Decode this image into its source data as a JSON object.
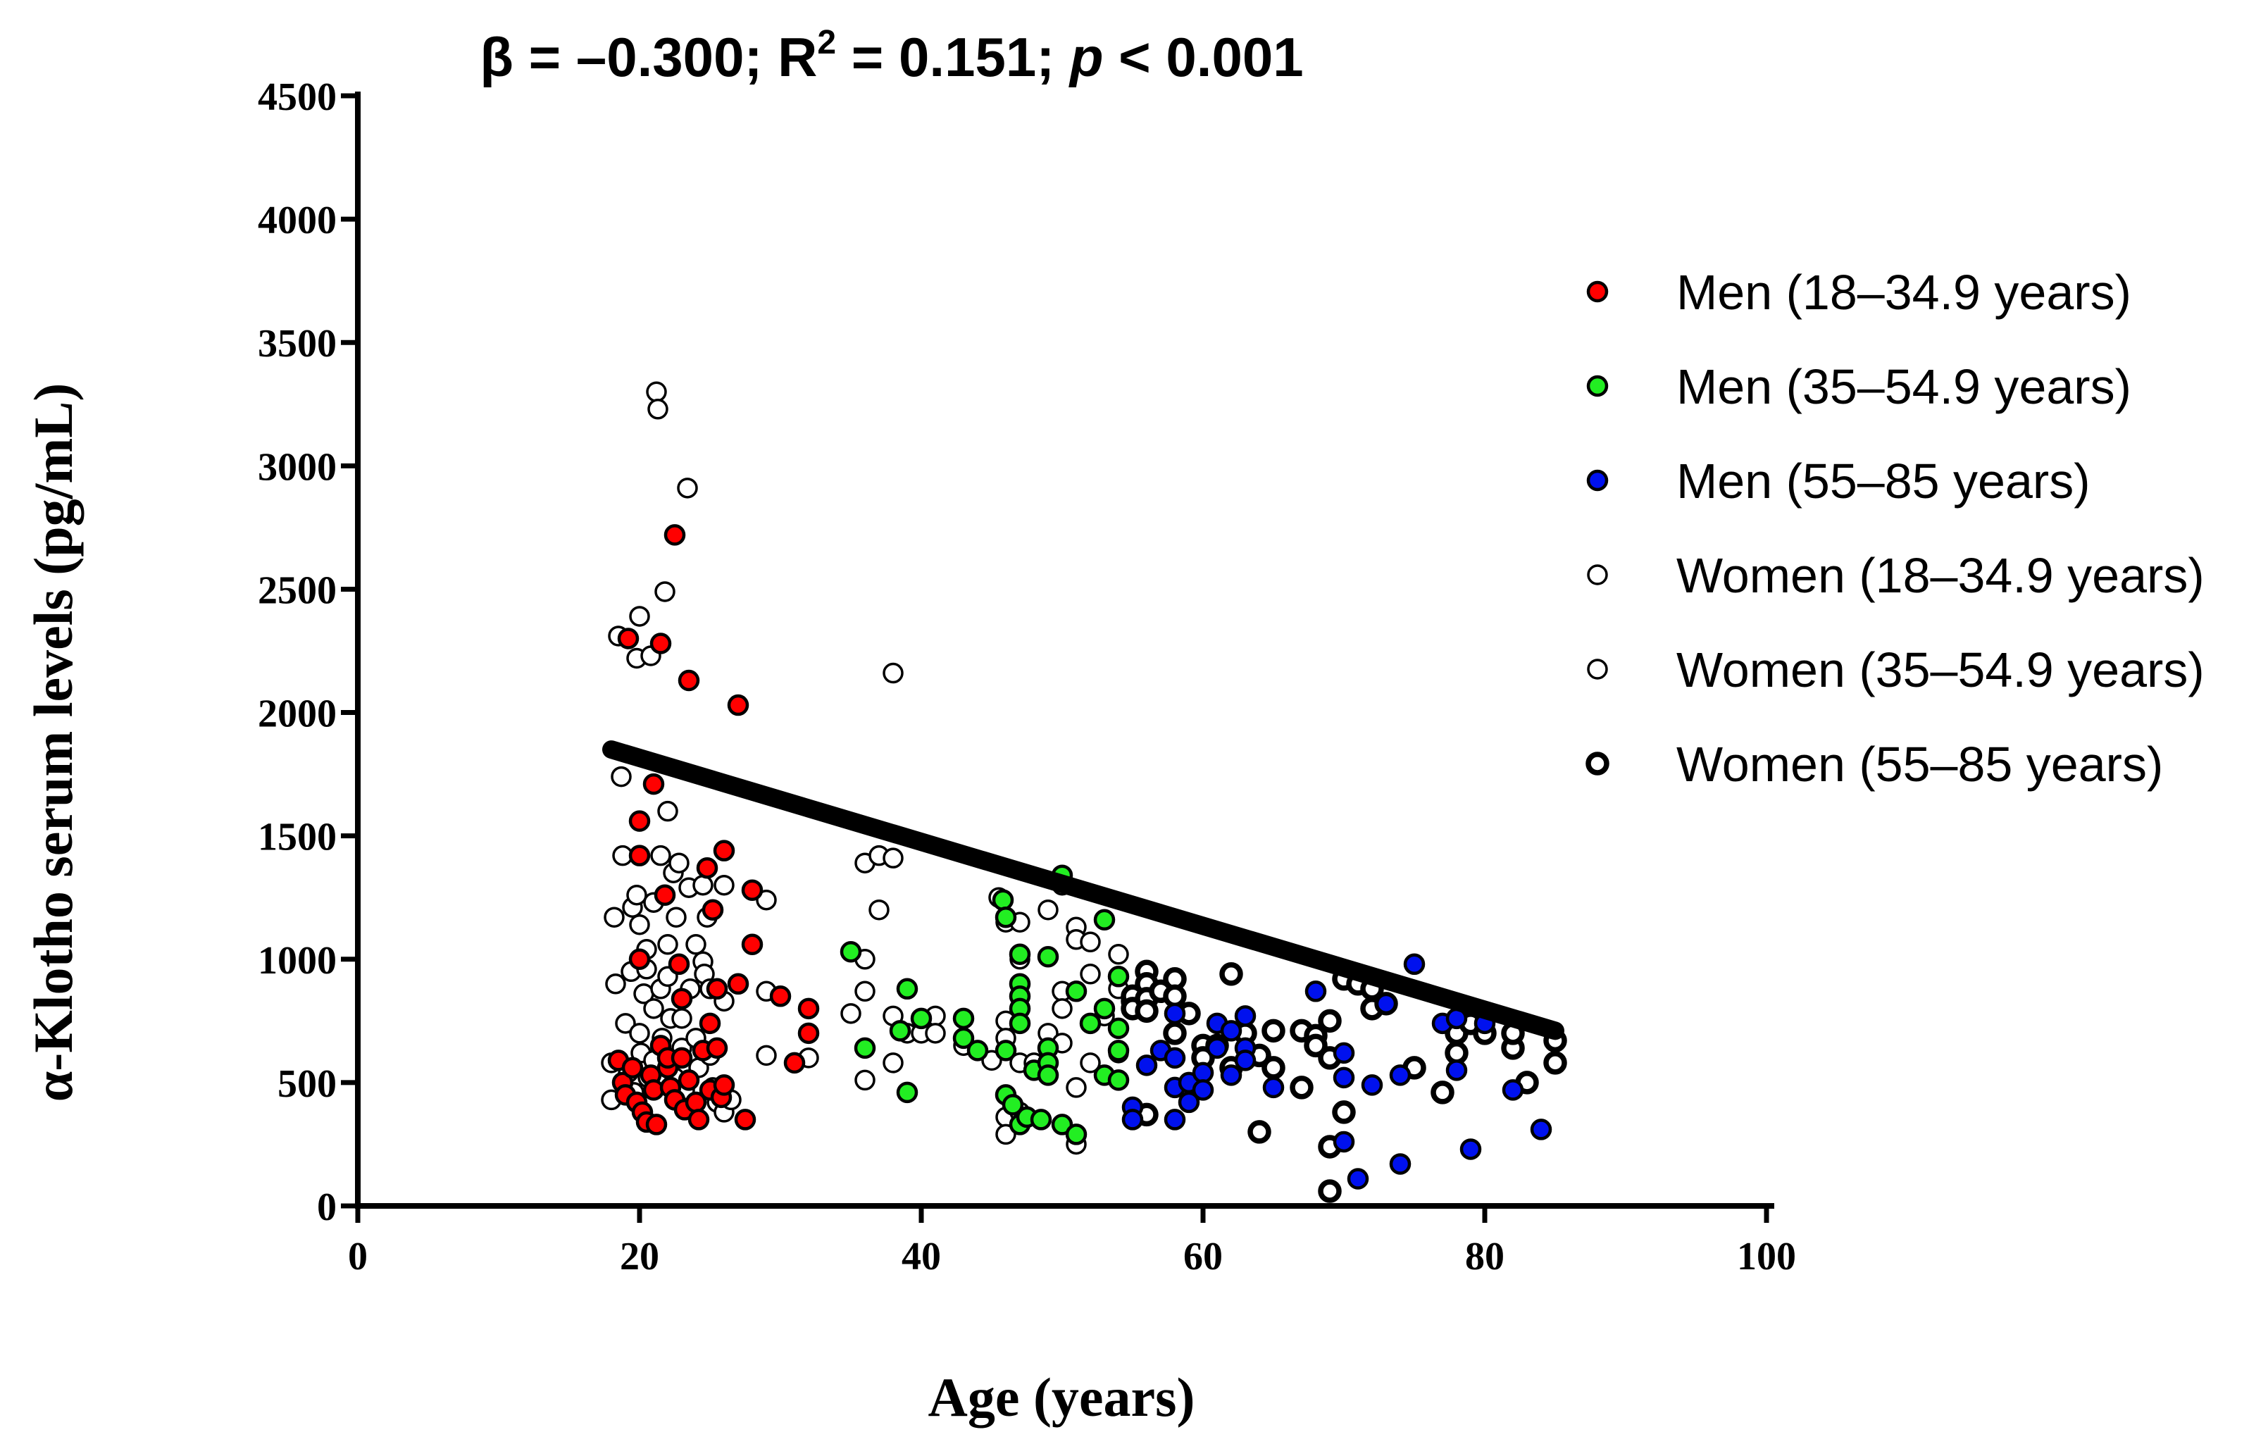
{
  "chart_data": {
    "type": "scatter",
    "title": {
      "beta_part": "β = –0.300; R",
      "r_sup": "2",
      "r2_part": " = 0.151; ",
      "p_symbol": "p",
      "p_part": " < 0.001"
    },
    "xlabel": "Age (years)",
    "ylabel": "α-Klotho serum levels (pg/mL)",
    "xlim": [
      0,
      100
    ],
    "ylim": [
      0,
      4500
    ],
    "xticks": [
      "0",
      "20",
      "40",
      "60",
      "80",
      "100"
    ],
    "yticks": [
      "0",
      "500",
      "1000",
      "1500",
      "2000",
      "2500",
      "3000",
      "3500",
      "4000",
      "4500"
    ],
    "grid": false,
    "legend_position": "right",
    "regression_line": {
      "x": [
        18,
        85
      ],
      "y": [
        1850,
        710
      ]
    },
    "series": [
      {
        "name": "Men (18–34.9 years)",
        "color": "#ff0000",
        "marker": "filled",
        "points": [
          [
            18.5,
            590
          ],
          [
            18.8,
            500
          ],
          [
            19,
            450
          ],
          [
            19.2,
            2300
          ],
          [
            19.5,
            560
          ],
          [
            19.8,
            420
          ],
          [
            20,
            1560
          ],
          [
            20,
            1420
          ],
          [
            20,
            1000
          ],
          [
            20.2,
            380
          ],
          [
            20.5,
            340
          ],
          [
            20.8,
            530
          ],
          [
            21,
            1710
          ],
          [
            21,
            470
          ],
          [
            21.2,
            330
          ],
          [
            21.5,
            2280
          ],
          [
            21.5,
            650
          ],
          [
            21.8,
            1260
          ],
          [
            22,
            560
          ],
          [
            22,
            600
          ],
          [
            22.2,
            480
          ],
          [
            22.5,
            2720
          ],
          [
            22.5,
            430
          ],
          [
            22.8,
            980
          ],
          [
            23,
            840
          ],
          [
            23,
            600
          ],
          [
            23.2,
            390
          ],
          [
            23.5,
            2130
          ],
          [
            23.5,
            510
          ],
          [
            24,
            420
          ],
          [
            24.2,
            350
          ],
          [
            24.5,
            630
          ],
          [
            24.8,
            1370
          ],
          [
            25,
            740
          ],
          [
            25,
            470
          ],
          [
            25.2,
            1200
          ],
          [
            25.5,
            880
          ],
          [
            25.5,
            640
          ],
          [
            25.8,
            440
          ],
          [
            26,
            1440
          ],
          [
            26,
            490
          ],
          [
            27,
            2030
          ],
          [
            27,
            900
          ],
          [
            27.5,
            350
          ],
          [
            28,
            1060
          ],
          [
            28,
            1280
          ],
          [
            30,
            850
          ],
          [
            31,
            580
          ],
          [
            32,
            800
          ],
          [
            32,
            700
          ]
        ]
      },
      {
        "name": "Men (35–54.9 years)",
        "color": "#22ee22",
        "marker": "filled",
        "points": [
          [
            35,
            1030
          ],
          [
            36,
            640
          ],
          [
            38.5,
            710
          ],
          [
            39,
            880
          ],
          [
            39,
            460
          ],
          [
            40,
            760
          ],
          [
            43,
            760
          ],
          [
            43,
            680
          ],
          [
            44,
            630
          ],
          [
            45.8,
            1240
          ],
          [
            46,
            1170
          ],
          [
            46,
            630
          ],
          [
            46,
            450
          ],
          [
            46.5,
            410
          ],
          [
            47,
            1020
          ],
          [
            47,
            900
          ],
          [
            47,
            850
          ],
          [
            47,
            800
          ],
          [
            47,
            740
          ],
          [
            47,
            330
          ],
          [
            47.5,
            360
          ],
          [
            48,
            550
          ],
          [
            48.5,
            350
          ],
          [
            49,
            1010
          ],
          [
            49,
            640
          ],
          [
            49,
            580
          ],
          [
            49,
            530
          ],
          [
            50,
            1340
          ],
          [
            50,
            330
          ],
          [
            51,
            870
          ],
          [
            51,
            290
          ],
          [
            52,
            740
          ],
          [
            53,
            1160
          ],
          [
            53,
            800
          ],
          [
            53,
            530
          ],
          [
            54,
            930
          ],
          [
            54,
            720
          ],
          [
            54,
            630
          ],
          [
            54,
            510
          ]
        ]
      },
      {
        "name": "Men (55–85 years)",
        "color": "#0011ee",
        "marker": "filled",
        "points": [
          [
            55,
            400
          ],
          [
            55,
            350
          ],
          [
            56,
            570
          ],
          [
            57,
            630
          ],
          [
            58,
            780
          ],
          [
            58,
            600
          ],
          [
            58,
            480
          ],
          [
            58,
            350
          ],
          [
            59,
            420
          ],
          [
            59,
            500
          ],
          [
            60,
            540
          ],
          [
            60,
            470
          ],
          [
            61,
            740
          ],
          [
            61,
            640
          ],
          [
            62,
            710
          ],
          [
            62,
            530
          ],
          [
            63,
            770
          ],
          [
            63,
            640
          ],
          [
            63,
            590
          ],
          [
            65,
            480
          ],
          [
            68,
            870
          ],
          [
            70,
            620
          ],
          [
            70,
            520
          ],
          [
            70,
            260
          ],
          [
            71,
            110
          ],
          [
            72,
            490
          ],
          [
            73,
            820
          ],
          [
            74,
            170
          ],
          [
            74,
            530
          ],
          [
            75,
            980
          ],
          [
            77,
            740
          ],
          [
            78,
            760
          ],
          [
            78,
            550
          ],
          [
            79,
            230
          ],
          [
            80,
            740
          ],
          [
            82,
            470
          ],
          [
            84,
            310
          ]
        ]
      },
      {
        "name": "Women (18–34.9 years)",
        "color": "#ffffff",
        "marker": "open",
        "points": [
          [
            18,
            580
          ],
          [
            18,
            430
          ],
          [
            18.2,
            1170
          ],
          [
            18.3,
            900
          ],
          [
            18.5,
            2310
          ],
          [
            18.7,
            1740
          ],
          [
            18.8,
            1420
          ],
          [
            19,
            740
          ],
          [
            19.2,
            540
          ],
          [
            19.4,
            950
          ],
          [
            19.5,
            1210
          ],
          [
            19.6,
            460
          ],
          [
            19.8,
            1260
          ],
          [
            19.8,
            2220
          ],
          [
            20,
            2390
          ],
          [
            20,
            1140
          ],
          [
            20,
            700
          ],
          [
            20.1,
            620
          ],
          [
            20.3,
            860
          ],
          [
            20.5,
            960
          ],
          [
            20.5,
            1040
          ],
          [
            20.6,
            520
          ],
          [
            20.8,
            2230
          ],
          [
            21,
            1230
          ],
          [
            21,
            800
          ],
          [
            21,
            590
          ],
          [
            21.2,
            3300
          ],
          [
            21.3,
            3230
          ],
          [
            21.5,
            880
          ],
          [
            21.5,
            1420
          ],
          [
            21.6,
            680
          ],
          [
            21.8,
            2490
          ],
          [
            22,
            1600
          ],
          [
            22,
            1060
          ],
          [
            22,
            930
          ],
          [
            22.2,
            760
          ],
          [
            22.4,
            1350
          ],
          [
            22.5,
            520
          ],
          [
            22.6,
            1170
          ],
          [
            22.8,
            1390
          ],
          [
            23,
            760
          ],
          [
            23,
            640
          ],
          [
            23.2,
            470
          ],
          [
            23.4,
            2910
          ],
          [
            23.5,
            1290
          ],
          [
            23.6,
            880
          ],
          [
            24,
            1060
          ],
          [
            24,
            680
          ],
          [
            24.2,
            560
          ],
          [
            24.5,
            1300
          ],
          [
            24.5,
            990
          ],
          [
            24.6,
            940
          ],
          [
            24.8,
            1170
          ],
          [
            25,
            880
          ],
          [
            25,
            610
          ],
          [
            25.2,
            480
          ],
          [
            25.5,
            420
          ],
          [
            26,
            1300
          ],
          [
            26,
            830
          ],
          [
            26,
            380
          ],
          [
            26.5,
            430
          ],
          [
            29,
            870
          ],
          [
            29,
            1240
          ],
          [
            29,
            610
          ],
          [
            32,
            600
          ]
        ]
      },
      {
        "name": "Women (35–54.9 years)",
        "color": "#ffffff",
        "marker": "open",
        "points": [
          [
            35,
            780
          ],
          [
            36,
            1000
          ],
          [
            36,
            870
          ],
          [
            36,
            1390
          ],
          [
            36,
            510
          ],
          [
            37,
            1420
          ],
          [
            37,
            1200
          ],
          [
            38,
            2160
          ],
          [
            38,
            1410
          ],
          [
            38,
            770
          ],
          [
            38,
            580
          ],
          [
            39,
            700
          ],
          [
            40,
            700
          ],
          [
            41,
            770
          ],
          [
            41,
            700
          ],
          [
            43,
            650
          ],
          [
            45,
            590
          ],
          [
            45.5,
            1250
          ],
          [
            46,
            1150
          ],
          [
            46,
            750
          ],
          [
            46,
            680
          ],
          [
            46,
            360
          ],
          [
            46,
            290
          ],
          [
            47,
            1150
          ],
          [
            47,
            1000
          ],
          [
            47,
            580
          ],
          [
            47,
            380
          ],
          [
            48,
            550
          ],
          [
            48,
            580
          ],
          [
            49,
            1200
          ],
          [
            49,
            700
          ],
          [
            50,
            1300
          ],
          [
            50,
            870
          ],
          [
            50,
            800
          ],
          [
            50,
            660
          ],
          [
            51,
            1130
          ],
          [
            51,
            1080
          ],
          [
            51,
            480
          ],
          [
            51,
            250
          ],
          [
            52,
            1070
          ],
          [
            52,
            940
          ],
          [
            52,
            580
          ],
          [
            53,
            770
          ],
          [
            54,
            1020
          ],
          [
            54,
            880
          ],
          [
            54,
            620
          ]
        ]
      },
      {
        "name": "Women (55–85 years)",
        "color": "#ffffff",
        "marker": "open-thick",
        "points": [
          [
            55,
            830
          ],
          [
            55,
            850
          ],
          [
            55,
            800
          ],
          [
            56,
            950
          ],
          [
            56,
            900
          ],
          [
            56,
            840
          ],
          [
            56,
            790
          ],
          [
            56,
            370
          ],
          [
            57,
            870
          ],
          [
            58,
            920
          ],
          [
            58,
            850
          ],
          [
            58,
            700
          ],
          [
            59,
            780
          ],
          [
            60,
            650
          ],
          [
            60,
            600
          ],
          [
            61,
            650
          ],
          [
            62,
            940
          ],
          [
            62,
            560
          ],
          [
            63,
            700
          ],
          [
            64,
            610
          ],
          [
            64,
            300
          ],
          [
            65,
            710
          ],
          [
            65,
            560
          ],
          [
            67,
            710
          ],
          [
            67,
            480
          ],
          [
            68,
            690
          ],
          [
            68,
            650
          ],
          [
            69,
            750
          ],
          [
            69,
            600
          ],
          [
            69,
            240
          ],
          [
            69,
            60
          ],
          [
            70,
            920
          ],
          [
            70,
            380
          ],
          [
            71,
            900
          ],
          [
            72,
            880
          ],
          [
            72,
            800
          ],
          [
            73,
            820
          ],
          [
            75,
            560
          ],
          [
            77,
            460
          ],
          [
            78,
            620
          ],
          [
            78,
            700
          ],
          [
            79,
            740
          ],
          [
            80,
            700
          ],
          [
            82,
            640
          ],
          [
            82,
            700
          ],
          [
            83,
            500
          ],
          [
            85,
            580
          ],
          [
            85,
            670
          ]
        ]
      }
    ]
  }
}
